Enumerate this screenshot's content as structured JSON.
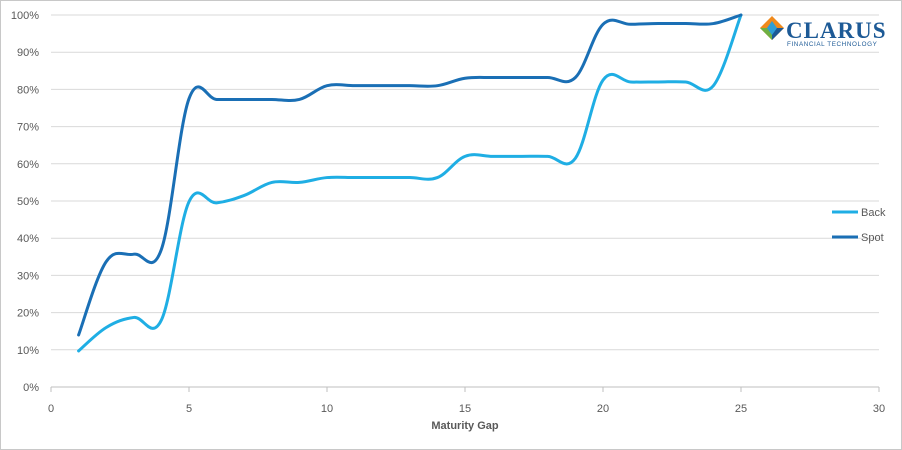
{
  "logo": {
    "name": "CLARUS",
    "tagline": "FINANCIAL TECHNOLOGY",
    "colors": {
      "text": "#1d5a96",
      "orange": "#f08a1c",
      "blue": "#1d5a96",
      "teal": "#2f9ed6",
      "green": "#6fb043"
    }
  },
  "chart_data": {
    "type": "line",
    "xlabel": "Maturity Gap",
    "ylabel": "",
    "xlim": [
      0,
      30
    ],
    "ylim": [
      0,
      1
    ],
    "x_ticks": [
      "0",
      "5",
      "10",
      "15",
      "20",
      "25",
      "30"
    ],
    "y_ticks": [
      "0%",
      "10%",
      "20%",
      "30%",
      "40%",
      "50%",
      "60%",
      "70%",
      "80%",
      "90%",
      "100%"
    ],
    "grid": "horizontal",
    "legend_position": "right",
    "series": [
      {
        "name": "Back",
        "color": "#1faee4",
        "x": [
          1,
          2,
          3,
          4,
          5,
          6,
          7,
          8,
          9,
          10,
          11,
          12,
          13,
          14,
          15,
          16,
          17,
          18,
          19,
          20,
          21,
          22,
          23,
          24,
          25
        ],
        "y": [
          0.097,
          0.16,
          0.187,
          0.18,
          0.498,
          0.495,
          0.515,
          0.55,
          0.55,
          0.563,
          0.563,
          0.563,
          0.563,
          0.563,
          0.62,
          0.62,
          0.62,
          0.62,
          0.615,
          0.825,
          0.82,
          0.82,
          0.82,
          0.81,
          1.0
        ]
      },
      {
        "name": "Spot",
        "color": "#1a6fb5",
        "x": [
          1,
          2,
          3,
          4,
          5,
          6,
          7,
          8,
          9,
          10,
          11,
          12,
          13,
          14,
          15,
          16,
          17,
          18,
          19,
          20,
          21,
          22,
          23,
          24,
          25
        ],
        "y": [
          0.14,
          0.337,
          0.357,
          0.37,
          0.775,
          0.773,
          0.773,
          0.773,
          0.773,
          0.81,
          0.81,
          0.81,
          0.81,
          0.81,
          0.83,
          0.832,
          0.832,
          0.832,
          0.832,
          0.975,
          0.975,
          0.977,
          0.977,
          0.977,
          1.0
        ]
      }
    ]
  }
}
